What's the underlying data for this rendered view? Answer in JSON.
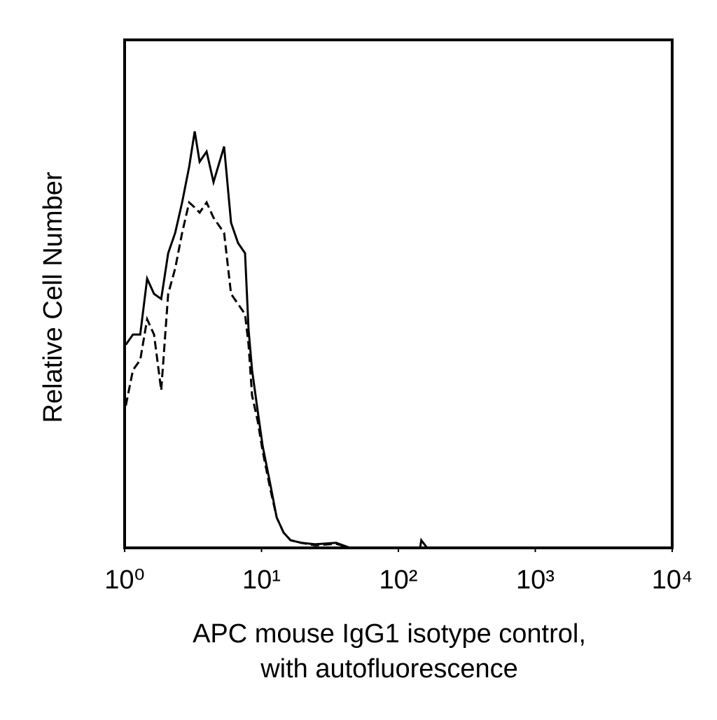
{
  "chart_data": {
    "type": "line",
    "xlabel": [
      "APC mouse IgG1 isotype control,",
      "with autofluorescence"
    ],
    "ylabel": "Relative Cell Number",
    "xscale": "log",
    "xlim": [
      1,
      10000
    ],
    "xticks": [
      {
        "value": 1,
        "label": "10⁰"
      },
      {
        "value": 10,
        "label": "10¹"
      },
      {
        "value": 100,
        "label": "10²"
      },
      {
        "value": 1000,
        "label": "10³"
      },
      {
        "value": 10000,
        "label": "10⁴"
      }
    ],
    "ylim": [
      0,
      100
    ],
    "x": [
      1.02,
      1.15,
      1.3,
      1.46,
      1.64,
      1.85,
      2.08,
      2.34,
      2.63,
      2.96,
      3.25,
      3.53,
      3.97,
      4.46,
      5.33,
      5.99,
      6.74,
      7.58,
      8.04,
      8.53,
      9.37,
      10.2,
      11.5,
      12.9,
      14.5,
      16.3,
      19.5,
      24.6,
      35.1,
      44.4,
      128,
      144,
      147,
      162,
      10000
    ],
    "series": [
      {
        "color": "#000000",
        "dash": false,
        "values": [
          40,
          42,
          42,
          53,
          50,
          49,
          58,
          62,
          68,
          75,
          82,
          76,
          78,
          72,
          79,
          64,
          60,
          58,
          43,
          35,
          27,
          20,
          13,
          6,
          3,
          1.5,
          1,
          0.7,
          1,
          0,
          0,
          0,
          1.5,
          0,
          0
        ]
      },
      {
        "color": "#000000",
        "dash": true,
        "values": [
          28,
          35,
          37,
          45,
          42,
          31,
          50,
          55,
          62,
          68,
          67,
          66,
          68,
          65,
          62,
          50,
          48,
          46,
          40,
          30,
          25,
          19,
          12,
          6,
          3,
          1.5,
          1,
          0.5,
          0.8,
          0,
          0,
          0,
          0,
          0,
          0
        ]
      }
    ]
  }
}
